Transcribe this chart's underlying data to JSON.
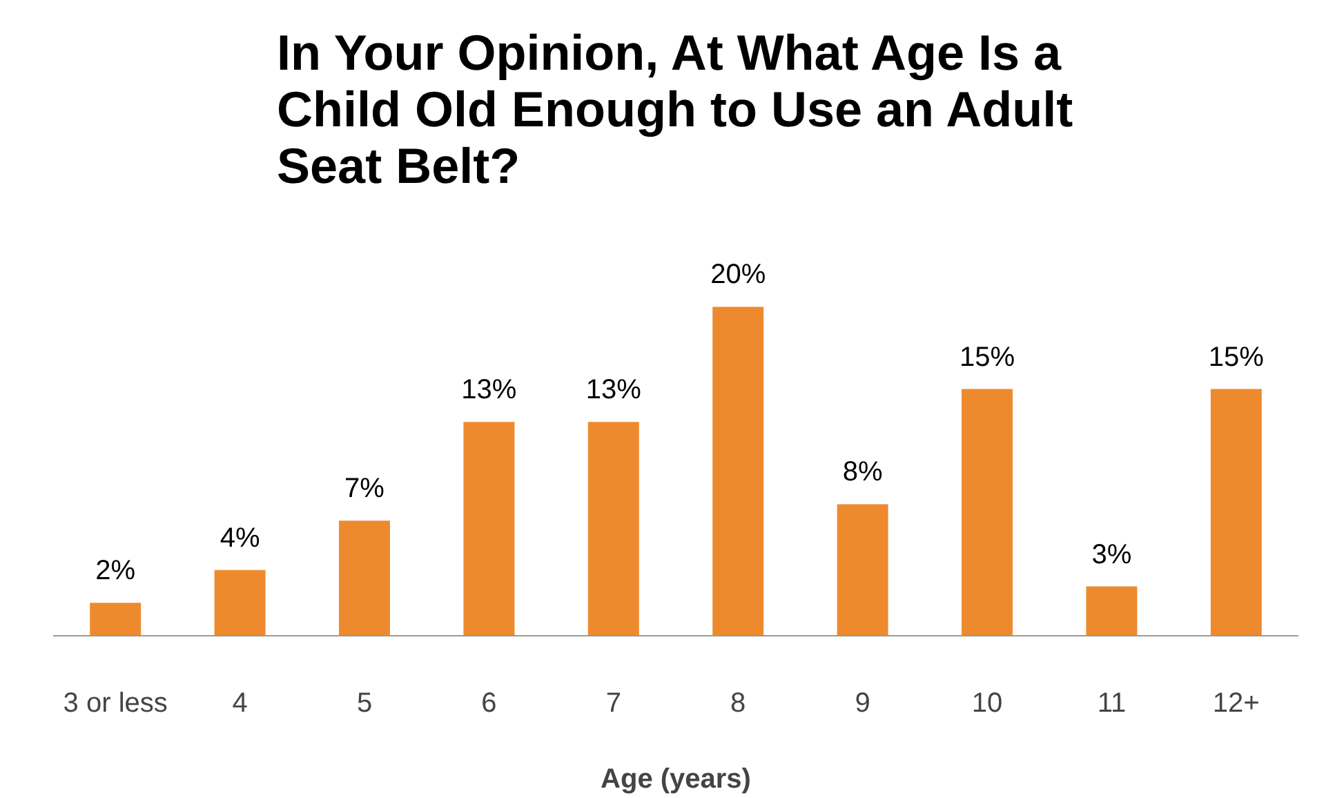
{
  "chart_data": {
    "type": "bar",
    "title": "In Your Opinion, At What Age Is a Child Old Enough to Use an Adult Seat Belt?",
    "xlabel": "Age (years)",
    "categories": [
      "3 or less",
      "4",
      "5",
      "6",
      "7",
      "8",
      "9",
      "10",
      "11",
      "12+"
    ],
    "values": [
      2,
      4,
      7,
      13,
      13,
      20,
      8,
      15,
      3,
      15
    ],
    "color": "#ee8a2e",
    "data_labels": true,
    "value_labels": [
      "2%",
      "4%",
      "7%",
      "13%",
      "13%",
      "20%",
      "8%",
      "15%",
      "3%",
      "15%"
    ]
  }
}
